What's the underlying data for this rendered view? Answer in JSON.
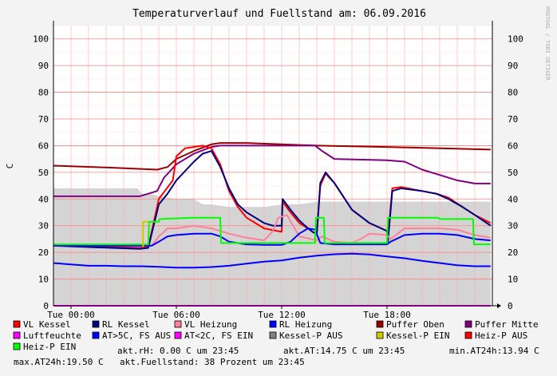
{
  "title": "Temperaturverlauf und Fuellstand am: 06.09.2016",
  "watermark": "RRDTOOL / TOBI OETIKER",
  "legend": [
    {
      "label": "VL Kessel",
      "color": "#ff0000"
    },
    {
      "label": "RL Kessel",
      "color": "#000080"
    },
    {
      "label": "VL Heizung",
      "color": "#ff8099"
    },
    {
      "label": "RL Heizung",
      "color": "#0000ff"
    },
    {
      "label": "Puffer Oben",
      "color": "#990000"
    },
    {
      "label": "Puffer Mitte",
      "color": "#800080"
    },
    {
      "label": "Luftfeuchte",
      "color": "#ff00ff"
    },
    {
      "label": "AT>5C, FS AUS",
      "color": "#0000ff"
    },
    {
      "label": "AT<2C, FS EIN",
      "color": "#ff00ff"
    },
    {
      "label": "Kessel-P AUS",
      "color": "#808080"
    },
    {
      "label": "Kessel-P EIN",
      "color": "#cccc00"
    },
    {
      "label": "Heiz-P AUS",
      "color": "#ff0000"
    },
    {
      "label": "Heiz-P EIN",
      "color": "#00ff00"
    }
  ],
  "stats": {
    "akt_rh": "akt.rH: 0.00 C um 23:45",
    "akt_at": "akt.AT:14.75 C um 23:45",
    "min_at24h": "min.AT24h:13.94 C",
    "max_at24h": "max.AT24h:19.50 C",
    "fuellstand": "akt.Fuellstand:   38 Prozent um 23:45"
  },
  "chart_data": {
    "type": "line",
    "title": "Temperaturverlauf und Fuellstand am: 06.09.2016",
    "ylabel": "C",
    "ylim": [
      0,
      105
    ],
    "xlim": [
      -1,
      24
    ],
    "yticks": [
      0,
      10,
      20,
      30,
      40,
      50,
      60,
      70,
      80,
      90,
      100
    ],
    "xticks": [
      {
        "value": 0,
        "label": "Tue 00:00"
      },
      {
        "value": 6,
        "label": "Tue 06:00"
      },
      {
        "value": 12,
        "label": "Tue 12:00"
      },
      {
        "value": 18,
        "label": "Tue 18:00"
      }
    ],
    "grid": true,
    "right_axis": true,
    "area": {
      "name": "Fuellstand",
      "color": "#d4d4d4",
      "x": [
        -1,
        3.8,
        4.0,
        4.5,
        5.0,
        6.0,
        7.0,
        7.5,
        8.0,
        9.0,
        10.0,
        11.0,
        12.0,
        13.0,
        14.0,
        15.0,
        16.0,
        17.0,
        18.0,
        19.0,
        20.0,
        21.0,
        22.0,
        23.0,
        23.9
      ],
      "y": [
        44,
        44,
        42,
        42,
        41,
        40,
        40,
        38,
        38,
        37,
        37,
        37,
        38,
        38,
        39,
        39,
        39,
        39,
        39,
        39,
        39,
        39,
        39,
        39,
        39
      ]
    },
    "series": [
      {
        "name": "Puffer Oben",
        "color": "#990000",
        "x": [
          -1,
          2,
          4.9,
          5.5,
          6.0,
          7.0,
          8.0,
          8.5,
          10.0,
          14.0,
          18.0,
          23.9
        ],
        "y": [
          52.5,
          51.8,
          51,
          52,
          55,
          58,
          60.5,
          61,
          61,
          60,
          59.5,
          58.5
        ]
      },
      {
        "name": "Puffer Mitte",
        "color": "#800080",
        "x": [
          -1,
          3.9,
          4.9,
          5.3,
          6.0,
          7.0,
          8.0,
          8.5,
          13.9,
          14.3,
          15.0,
          18.0,
          19.0,
          20.0,
          21.0,
          22.0,
          23.0,
          23.9
        ],
        "y": [
          41,
          41,
          43,
          48,
          53,
          57,
          59.5,
          60,
          60,
          58,
          55,
          54.5,
          54,
          51,
          49,
          47,
          45.8,
          45.8
        ]
      },
      {
        "name": "Luftfeuchte",
        "color": "#ff00ff",
        "x": [
          -1,
          23.9
        ],
        "y": [
          0,
          0
        ]
      },
      {
        "name": "VL Kessel",
        "color": "#ff0000",
        "x": [
          -1,
          3.9,
          4.4,
          5.0,
          5.8,
          6.0,
          6.5,
          7.5,
          8.0,
          8.5,
          9.0,
          9.5,
          10.0,
          10.5,
          11.0,
          12.0,
          12.05,
          12.5,
          13.0,
          13.5,
          13.8,
          14.0,
          14.2,
          14.5,
          15.0,
          15.5,
          16.0,
          17.0,
          18.0,
          18.05,
          18.3,
          18.8,
          20.0,
          20.8,
          21.5,
          22.3,
          23.0,
          23.9
        ],
        "y": [
          22.5,
          21.7,
          22,
          40,
          47,
          56,
          59,
          60,
          59,
          53,
          43,
          37,
          33,
          31,
          29,
          27.7,
          39,
          35,
          31,
          29,
          27.5,
          27,
          45,
          49.5,
          46,
          41,
          36,
          31,
          28,
          25,
          44,
          44.5,
          43,
          42,
          40.5,
          37,
          34,
          31
        ]
      },
      {
        "name": "RL Kessel",
        "color": "#000080",
        "x": [
          -1,
          3.9,
          4.4,
          5.0,
          5.5,
          6.0,
          7.0,
          7.5,
          8.0,
          8.5,
          9.0,
          9.5,
          10.0,
          10.5,
          11.0,
          11.5,
          12.0,
          12.05,
          12.5,
          13.0,
          13.5,
          13.8,
          14.0,
          14.2,
          14.5,
          15.0,
          15.5,
          16.0,
          17.0,
          18.0,
          18.05,
          18.3,
          18.8,
          20.0,
          20.8,
          21.5,
          22.3,
          23.0,
          23.9
        ],
        "y": [
          22.5,
          21.3,
          21.7,
          38,
          42,
          47,
          54,
          57,
          58,
          52,
          44,
          38,
          35,
          33,
          31,
          30,
          30,
          40,
          36,
          32,
          29,
          27.5,
          27,
          46,
          50,
          46,
          41,
          36,
          31,
          28,
          24,
          43,
          44,
          43,
          42,
          40,
          37,
          34,
          30
        ]
      },
      {
        "name": "VL Heizung",
        "color": "#ff8099",
        "x": [
          -1,
          4.6,
          5.0,
          5.5,
          6.0,
          7.0,
          8.0,
          8.5,
          9.0,
          10.0,
          10.5,
          11.0,
          11.5,
          11.8,
          12.3,
          13.0,
          14.0,
          14.3,
          15.0,
          16.0,
          16.5,
          17.0,
          18.0,
          18.2,
          19.0,
          20.0,
          21.0,
          22.0,
          23.0,
          23.9
        ],
        "y": [
          22.5,
          22.5,
          26,
          29,
          29,
          30,
          29,
          28,
          27,
          25.5,
          25,
          24.5,
          28,
          33,
          34,
          26,
          24.5,
          26,
          24,
          23.5,
          25,
          27,
          26.5,
          25,
          29,
          29,
          29,
          28.5,
          26.5,
          25.5
        ]
      },
      {
        "name": "RL Heizung",
        "color": "#0000ff",
        "x": [
          -1,
          4.6,
          5.0,
          5.5,
          6.0,
          7.0,
          8.0,
          8.5,
          9.0,
          10.0,
          11.0,
          12.0,
          12.5,
          13.0,
          13.5,
          13.9,
          14.2,
          15.0,
          16.0,
          17.0,
          18.0,
          18.2,
          19.0,
          20.0,
          21.0,
          22.0,
          23.0,
          23.9
        ],
        "y": [
          22.5,
          22.5,
          24,
          26,
          26.5,
          27,
          27,
          26,
          24,
          23,
          22.8,
          22.8,
          24,
          27,
          29,
          28.5,
          23.5,
          23,
          23,
          23,
          23,
          24,
          26.5,
          27,
          27,
          26.5,
          25,
          24.5
        ]
      },
      {
        "name": "AT>5C, FS AUS",
        "color": "#0000ff",
        "x": [
          -1,
          0,
          1,
          2,
          3,
          4,
          5,
          6,
          7,
          8,
          9,
          10,
          11,
          12,
          13,
          14,
          15,
          16,
          17,
          18,
          19,
          20,
          21,
          22,
          23,
          23.9
        ],
        "y": [
          16,
          15.5,
          15,
          15,
          14.8,
          14.8,
          14.6,
          14.3,
          14.3,
          14.5,
          15,
          15.8,
          16.5,
          17,
          18,
          18.8,
          19.3,
          19.5,
          19.2,
          18.5,
          17.8,
          16.8,
          16,
          15.2,
          14.8,
          14.8
        ]
      },
      {
        "name": "Heiz-P EIN",
        "color": "#00ff00",
        "x": [
          -1,
          4.4,
          4.45,
          5.0,
          5.05,
          7.0,
          8.0,
          8.5,
          8.55,
          13.9,
          13.95,
          14.4,
          14.45,
          18.0,
          18.05,
          20.9,
          21.0,
          22.9,
          22.95,
          23.9
        ],
        "y": [
          23,
          23,
          31.5,
          31.5,
          32.5,
          33,
          33,
          33,
          23.5,
          23.5,
          33,
          33,
          23.5,
          23.5,
          33,
          33,
          32.5,
          32.5,
          23,
          23
        ]
      },
      {
        "name": "Kessel-P EIN",
        "color": "#cccc00",
        "x": [
          4.1,
          4.1,
          4.4
        ],
        "y": [
          22,
          31.5,
          31.5
        ]
      }
    ]
  }
}
